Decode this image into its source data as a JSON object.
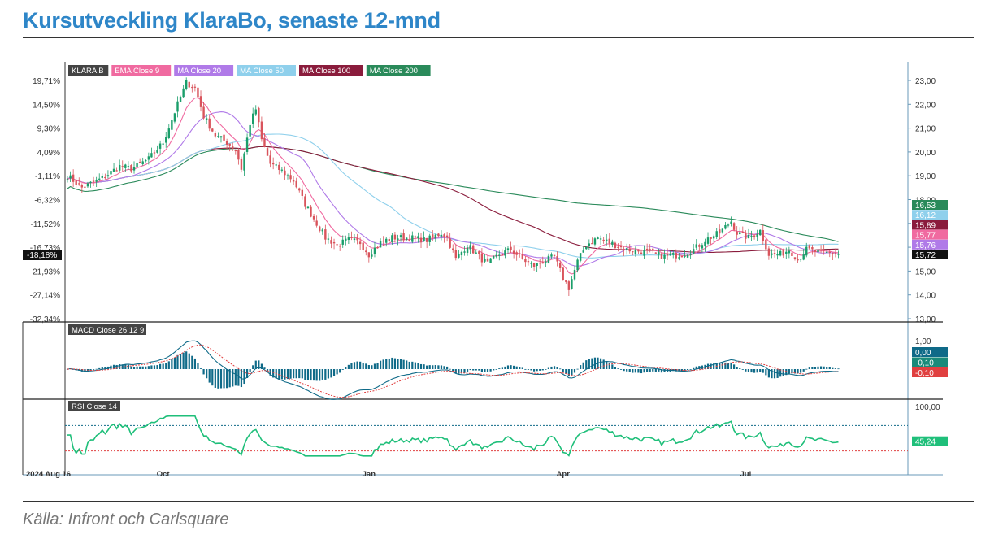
{
  "title": "Kursutveckling KlaraBo, senaste 12-mnd",
  "source": "Källa: Infront och Carlsquare",
  "colors": {
    "title": "#2e86c8",
    "up": "#1a9e6a",
    "down": "#d9545c",
    "ema9": "#f06aa0",
    "ma20": "#b07ae8",
    "ma50": "#8fd0ec",
    "ma100": "#8a1c3c",
    "ma200": "#2a8a5a",
    "macd": "#0f6a88",
    "signal": "#e04040",
    "rsi": "#1fbf7a"
  },
  "chart_data": [
    {
      "type": "candlestick",
      "panel": "price",
      "legend": [
        {
          "label": "KLARA B",
          "color": "#444444"
        },
        {
          "label": "EMA Close 9",
          "color": "#f06aa0"
        },
        {
          "label": "MA Close 20",
          "color": "#b07ae8"
        },
        {
          "label": "MA Close 50",
          "color": "#8fd0ec"
        },
        {
          "label": "MA Close 100",
          "color": "#8a1c3c"
        },
        {
          "label": "MA Close 200",
          "color": "#2a8a5a"
        }
      ],
      "x_ticks": [
        "2024 Aug 16",
        "Oct",
        "Jan",
        "Apr",
        "Jul"
      ],
      "x_tick_index": [
        0,
        33,
        104,
        171,
        234
      ],
      "n_sessions": 275,
      "y_right_ticks": [
        "23,00",
        "22,00",
        "21,00",
        "20,00",
        "19,00",
        "18,00",
        "17,00",
        "16,00",
        "15,00",
        "14,00",
        "13,00"
      ],
      "y_right_range": [
        13,
        23
      ],
      "y_left_ticks": [
        "19,71%",
        "14,50%",
        "9,30%",
        "4,09%",
        "-1,11%",
        "-6,32%",
        "-11,52%",
        "-16,73%",
        "-21,93%",
        "-27,14%",
        "-32,34%"
      ],
      "current_left_label": "-18,18%",
      "value_tags": [
        {
          "label": "16,53",
          "value": 16.53,
          "color": "#2a8a5a"
        },
        {
          "label": "16,12",
          "value": 16.12,
          "color": "#8fd0ec"
        },
        {
          "label": "15,89",
          "value": 15.89,
          "color": "#8a1c3c"
        },
        {
          "label": "15,77",
          "value": 15.77,
          "color": "#f06aa0"
        },
        {
          "label": "15,76",
          "value": 15.76,
          "color": "#b07ae8"
        },
        {
          "label": "15,72",
          "value": 15.72,
          "color": "#111111"
        }
      ],
      "close_keypoints": [
        [
          0,
          19.0
        ],
        [
          5,
          18.5
        ],
        [
          12,
          18.9
        ],
        [
          18,
          19.4
        ],
        [
          22,
          19.3
        ],
        [
          28,
          19.7
        ],
        [
          33,
          20.4
        ],
        [
          38,
          22.0
        ],
        [
          41,
          22.9
        ],
        [
          44,
          22.7
        ],
        [
          47,
          21.5
        ],
        [
          51,
          20.7
        ],
        [
          55,
          20.4
        ],
        [
          58,
          20.1
        ],
        [
          60,
          19.3
        ],
        [
          63,
          21.2
        ],
        [
          65,
          21.8
        ],
        [
          67,
          20.5
        ],
        [
          70,
          19.5
        ],
        [
          74,
          19.2
        ],
        [
          78,
          18.8
        ],
        [
          82,
          17.8
        ],
        [
          86,
          17.0
        ],
        [
          89,
          16.4
        ],
        [
          93,
          16.1
        ],
        [
          97,
          16.3
        ],
        [
          101,
          16.2
        ],
        [
          104,
          15.7
        ],
        [
          108,
          16.2
        ],
        [
          112,
          16.4
        ],
        [
          118,
          16.4
        ],
        [
          124,
          16.3
        ],
        [
          129,
          16.6
        ],
        [
          131,
          16.4
        ],
        [
          134,
          15.5
        ],
        [
          138,
          16.1
        ],
        [
          142,
          15.6
        ],
        [
          145,
          15.3
        ],
        [
          149,
          15.7
        ],
        [
          153,
          15.9
        ],
        [
          157,
          15.5
        ],
        [
          161,
          15.2
        ],
        [
          164,
          15.4
        ],
        [
          168,
          15.6
        ],
        [
          171,
          14.7
        ],
        [
          173,
          14.3
        ],
        [
          176,
          15.4
        ],
        [
          179,
          16.1
        ],
        [
          183,
          16.4
        ],
        [
          187,
          16.2
        ],
        [
          193,
          15.9
        ],
        [
          200,
          15.8
        ],
        [
          206,
          15.6
        ],
        [
          212,
          15.7
        ],
        [
          216,
          15.9
        ],
        [
          220,
          16.3
        ],
        [
          225,
          16.6
        ],
        [
          229,
          17.1
        ],
        [
          231,
          16.6
        ],
        [
          235,
          16.4
        ],
        [
          239,
          16.7
        ],
        [
          242,
          15.7
        ],
        [
          246,
          15.7
        ],
        [
          249,
          15.9
        ],
        [
          252,
          15.5
        ],
        [
          255,
          15.9
        ],
        [
          259,
          15.8
        ],
        [
          263,
          15.75
        ],
        [
          266,
          15.72
        ]
      ]
    },
    {
      "type": "line",
      "panel": "macd",
      "legend": "MACD Close 26 12 9",
      "y_ticks": [
        "1,00"
      ],
      "value_tags": [
        {
          "label": "0,00",
          "value": 0.0,
          "color": "#0f6a88"
        },
        {
          "label": "-0,10",
          "value": -0.1,
          "color": "#1a8a7a"
        },
        {
          "label": "-0,10",
          "value": -0.1,
          "color": "#e04040"
        }
      ]
    },
    {
      "type": "line",
      "panel": "rsi",
      "legend": "RSI Close 14",
      "y_ticks": [
        "100,00"
      ],
      "y_range": [
        0,
        100
      ],
      "levels": [
        70,
        30
      ],
      "value_tags": [
        {
          "label": "45,24",
          "value": 45.24,
          "color": "#1fbf7a"
        }
      ]
    }
  ]
}
